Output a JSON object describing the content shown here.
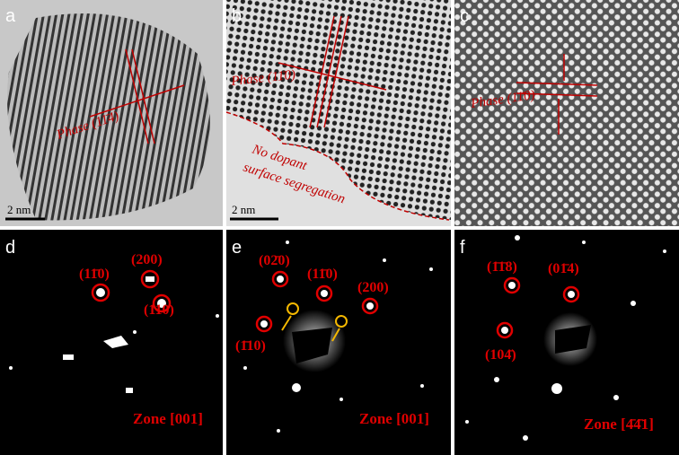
{
  "panels": [
    {
      "label": "a",
      "phase": "Phase (11̄4)",
      "scale": "2 nm"
    },
    {
      "label": "b",
      "phase": "Phase (11̄0)",
      "note": [
        "No dopant",
        "surface segregation"
      ],
      "scale": "2 nm"
    },
    {
      "label": "c",
      "phase": "Phase (11̄0)"
    },
    {
      "label": "d",
      "spots": [
        "(11̄0)",
        "(200)",
        "(110)"
      ],
      "zone": "Zone [001]"
    },
    {
      "label": "e",
      "spots": [
        "(02̄0)",
        "(11̄0)",
        "(200)",
        "(1̄10)"
      ],
      "zone": "Zone [001]"
    },
    {
      "label": "f",
      "spots": [
        "(1̄1̄8)",
        "(01̄4)",
        "(104̄)"
      ],
      "zone": "Zone [4̄4̄1]"
    }
  ]
}
